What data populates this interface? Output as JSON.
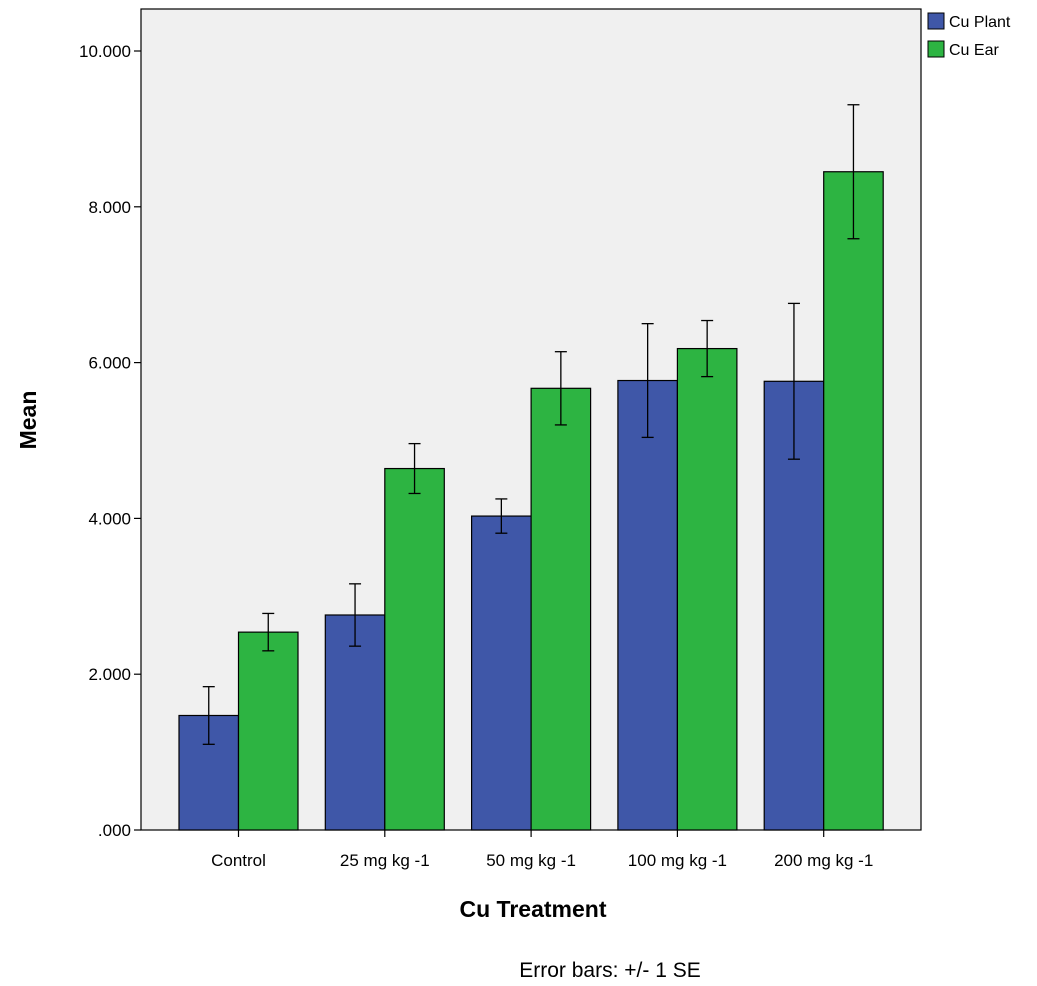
{
  "chart_data": {
    "type": "bar",
    "categories": [
      "Control",
      "25 mg kg -1",
      "50 mg kg -1",
      "100 mg kg -1",
      "200 mg kg -1"
    ],
    "series": [
      {
        "name": "Cu Plant",
        "color": "#3f57a8",
        "values": [
          1.47,
          2.76,
          4.03,
          5.77,
          5.76
        ],
        "error": [
          0.37,
          0.4,
          0.22,
          0.73,
          1.0
        ]
      },
      {
        "name": "Cu Ear",
        "color": "#2db442",
        "values": [
          2.54,
          4.64,
          5.67,
          6.18,
          8.45
        ],
        "error": [
          0.24,
          0.32,
          0.47,
          0.36,
          0.86
        ]
      }
    ],
    "yticks": [
      ".000",
      "2.000",
      "4.000",
      "6.000",
      "8.000",
      "10.000"
    ],
    "ylim": [
      0,
      10.5
    ],
    "xlabel": "Cu Treatment",
    "ylabel": "Mean",
    "legend_position": "top-right, outside plot",
    "plot_background": "#f0f0f0",
    "footnote": "Error bars: +/- 1 SE",
    "grid": false
  }
}
